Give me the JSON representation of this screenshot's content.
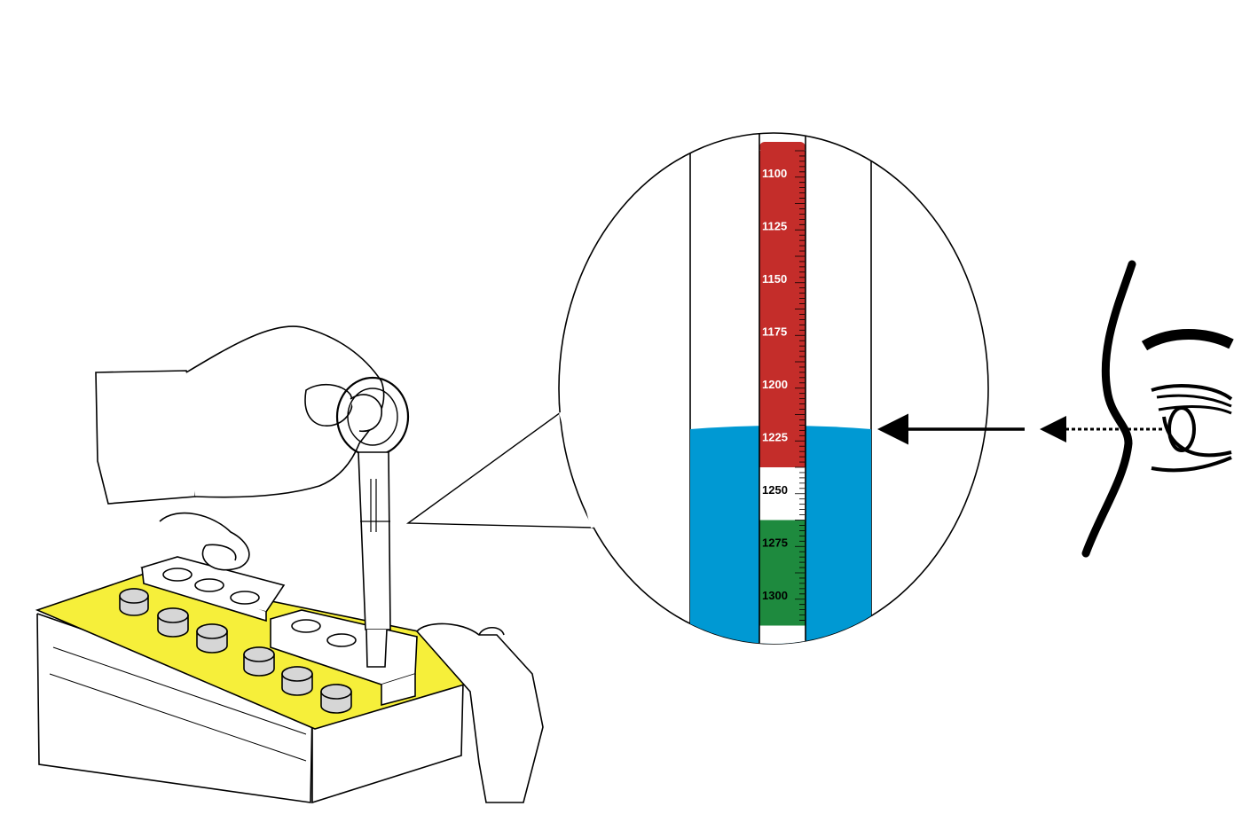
{
  "hydrometer": {
    "scale_labels": [
      {
        "text": "1100",
        "band": "red"
      },
      {
        "text": "1125",
        "band": "red"
      },
      {
        "text": "1150",
        "band": "red"
      },
      {
        "text": "1175",
        "band": "red"
      },
      {
        "text": "1200",
        "band": "red"
      },
      {
        "text": "1225",
        "band": "red"
      },
      {
        "text": "1250",
        "band": "white"
      },
      {
        "text": "1275",
        "band": "green"
      },
      {
        "text": "1300",
        "band": "green"
      }
    ],
    "fluid_level_reading": "1225"
  },
  "colors": {
    "red_band": "#c42d2a",
    "white_band": "#ffffff",
    "green_band": "#1e8a3e",
    "electrolyte": "#0099d3",
    "battery_top": "#f6ef3a",
    "line": "#000000"
  },
  "icons": [
    "hand-holding-hydrometer-icon",
    "battery-icon",
    "eye-icon",
    "sight-arrow-icon"
  ]
}
